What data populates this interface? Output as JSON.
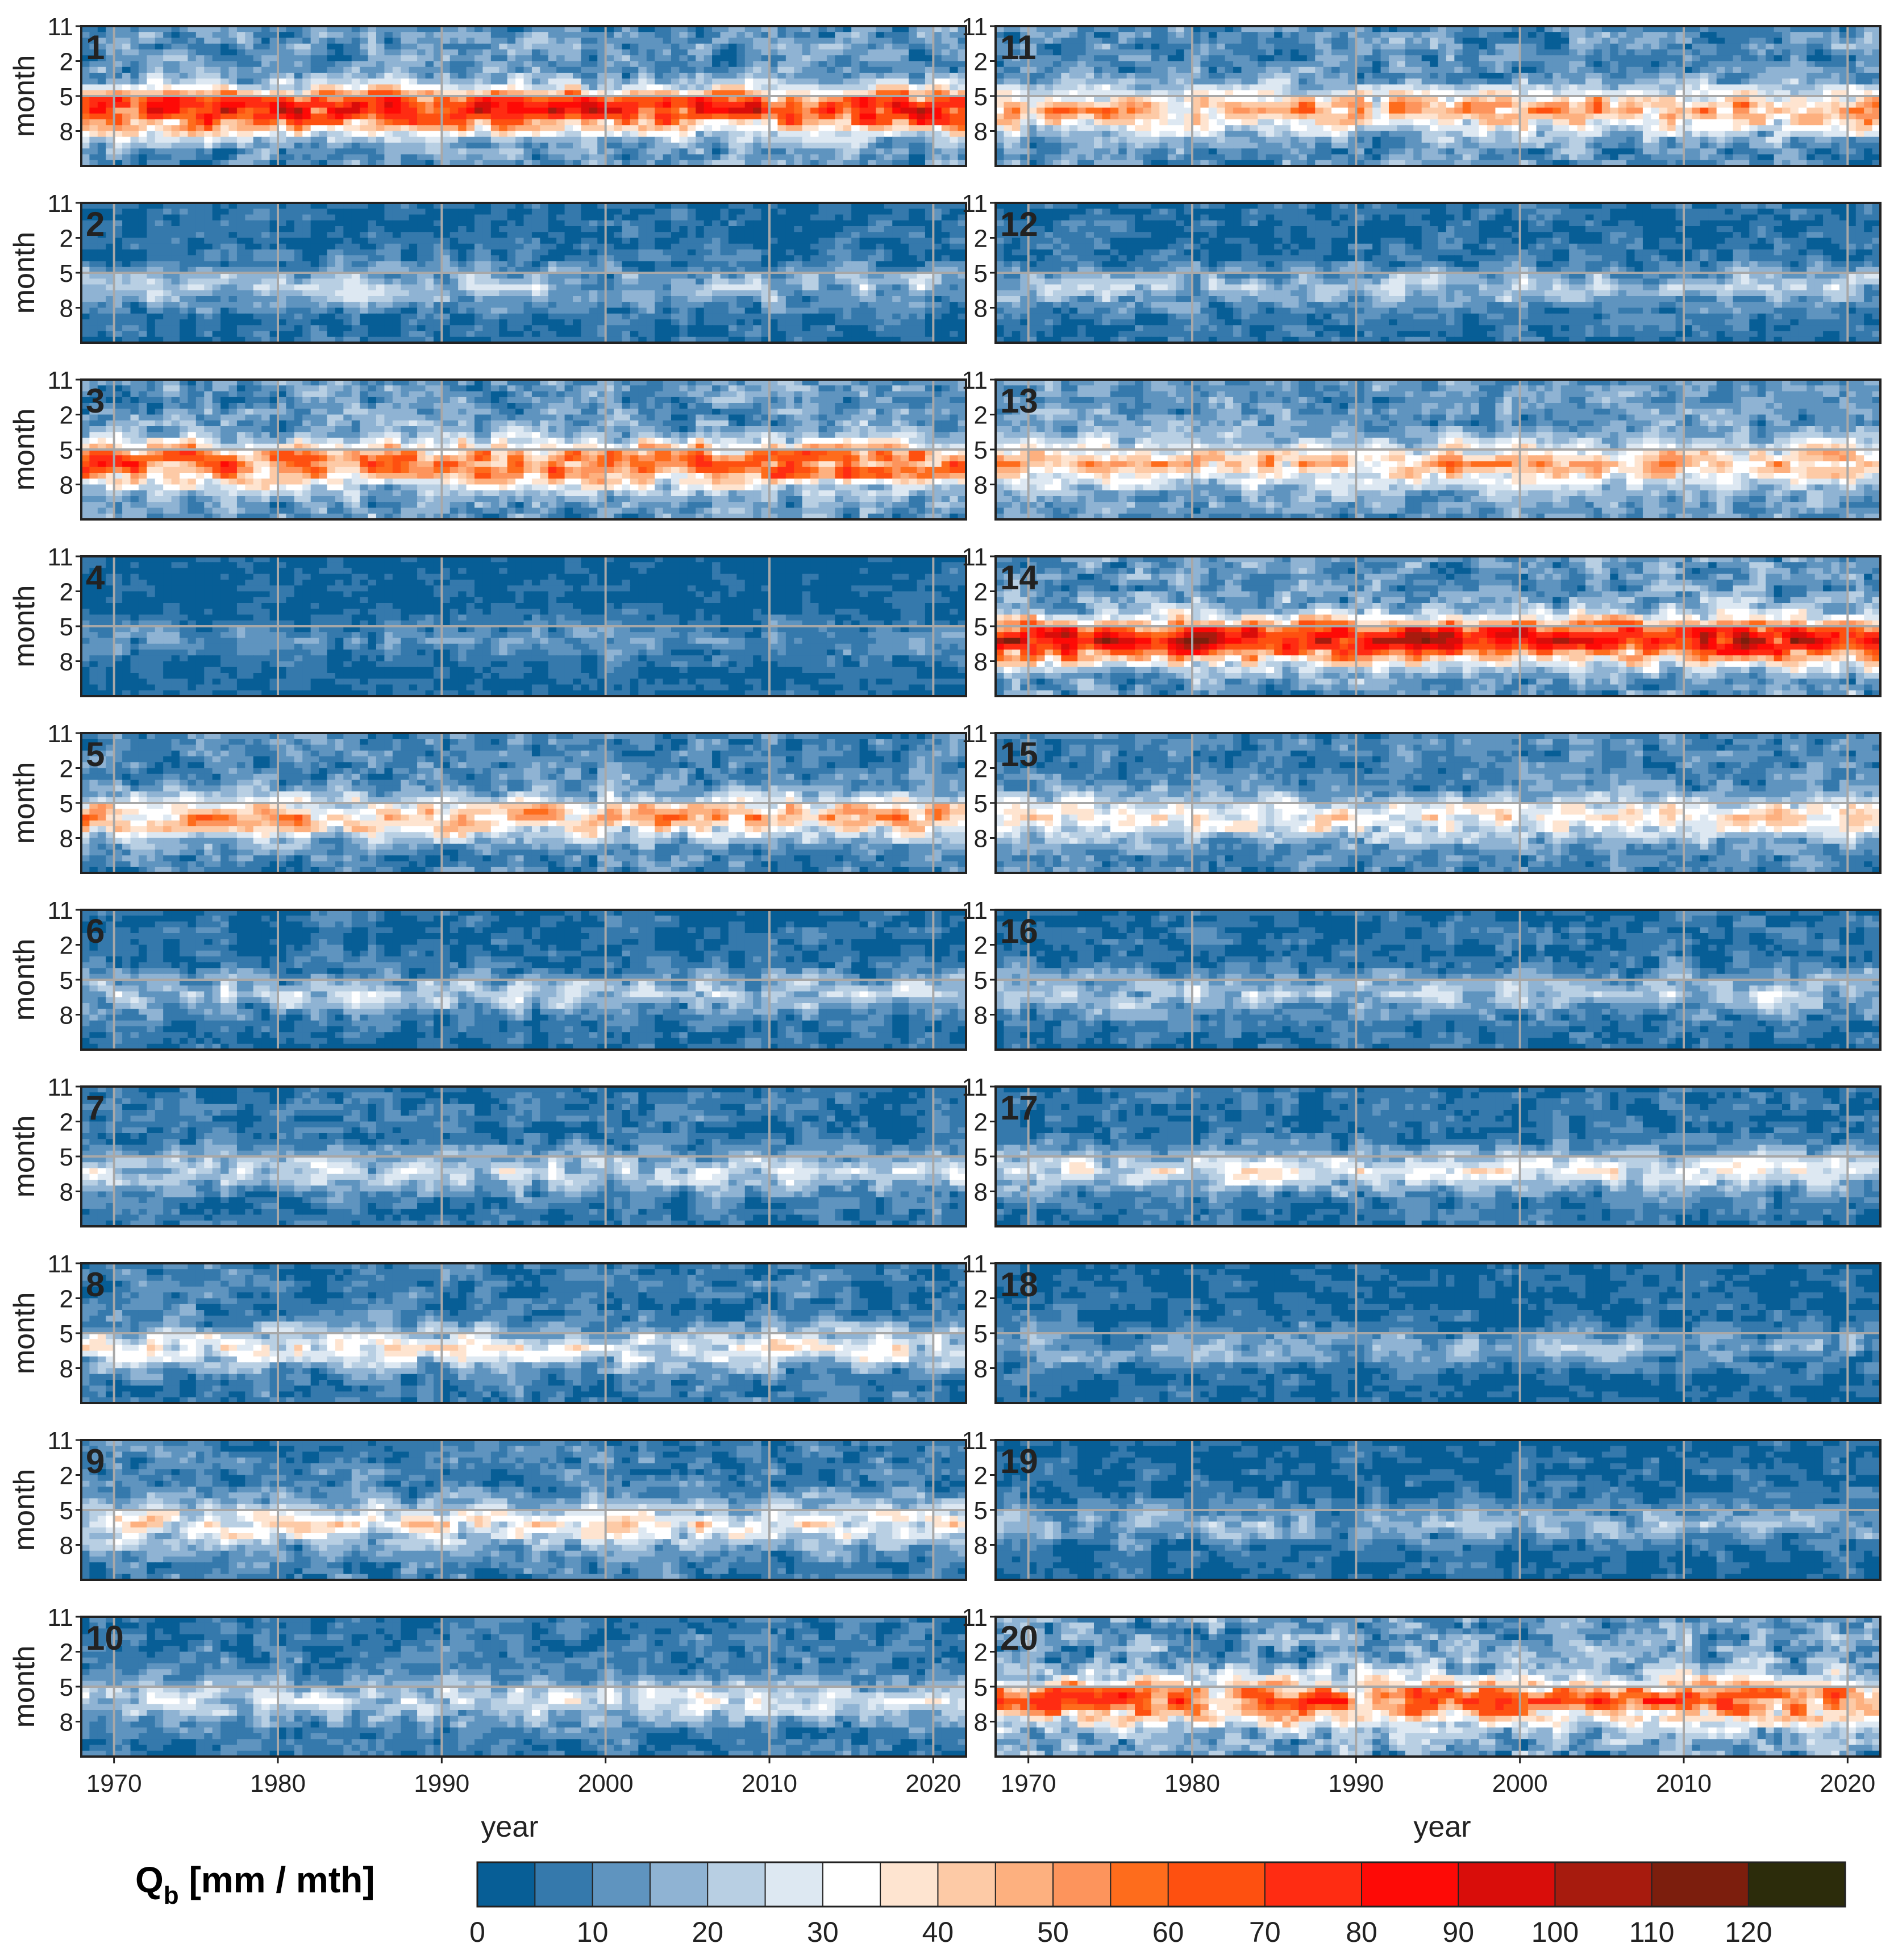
{
  "chart_data": {
    "type": "heatmap",
    "xlabel": "year",
    "ylabel": "month",
    "colorbar_label": "Q",
    "colorbar_label_sub": "b",
    "colorbar_label_unit": " [mm / mth]",
    "x_range": [
      1968,
      2022
    ],
    "x_ticks": [
      1970,
      1980,
      1990,
      2000,
      2010,
      2020
    ],
    "y_ticks": [
      11,
      2,
      5,
      8
    ],
    "y_ticks_months_from_nov": [
      0,
      3,
      6,
      9
    ],
    "grid": true,
    "colorbar": {
      "levels": [
        0,
        5,
        10,
        15,
        20,
        25,
        30,
        35,
        40,
        45,
        50,
        55,
        60,
        70,
        80,
        90,
        100,
        110,
        120,
        130
      ],
      "tick_values": [
        0,
        10,
        20,
        30,
        40,
        50,
        60,
        70,
        80,
        90,
        100,
        110,
        120
      ],
      "colors": [
        "#075e96",
        "#3579ac",
        "#5f94bf",
        "#8fb3d3",
        "#b8cfe3",
        "#dde8f2",
        "#ffffff",
        "#fee4d0",
        "#fdcaa6",
        "#fdb07f",
        "#fd945c",
        "#fe6c1c",
        "#fe5010",
        "#ff2c12",
        "#fe0a06",
        "#d90d0a",
        "#a71b0e",
        "#7c1e0d",
        "#2c2c0b"
      ]
    },
    "panels": [
      {
        "id": "1",
        "peak": 78,
        "base": 22,
        "noise": 12
      },
      {
        "id": "2",
        "peak": 20,
        "base": 10,
        "noise": 8
      },
      {
        "id": "3",
        "peak": 65,
        "base": 22,
        "noise": 12
      },
      {
        "id": "4",
        "peak": 12,
        "base": 7,
        "noise": 6
      },
      {
        "id": "5",
        "peak": 45,
        "base": 18,
        "noise": 10
      },
      {
        "id": "6",
        "peak": 22,
        "base": 10,
        "noise": 8
      },
      {
        "id": "7",
        "peak": 24,
        "base": 12,
        "noise": 8
      },
      {
        "id": "8",
        "peak": 30,
        "base": 14,
        "noise": 9
      },
      {
        "id": "9",
        "peak": 34,
        "base": 16,
        "noise": 9
      },
      {
        "id": "10",
        "peak": 26,
        "base": 14,
        "noise": 8
      },
      {
        "id": "11",
        "peak": 48,
        "base": 20,
        "noise": 11
      },
      {
        "id": "12",
        "peak": 20,
        "base": 10,
        "noise": 8
      },
      {
        "id": "13",
        "peak": 44,
        "base": 24,
        "noise": 10
      },
      {
        "id": "14",
        "peak": 88,
        "base": 24,
        "noise": 12
      },
      {
        "id": "15",
        "peak": 36,
        "base": 18,
        "noise": 9
      },
      {
        "id": "16",
        "peak": 22,
        "base": 11,
        "noise": 8
      },
      {
        "id": "17",
        "peak": 28,
        "base": 12,
        "noise": 8
      },
      {
        "id": "18",
        "peak": 16,
        "base": 8,
        "noise": 7
      },
      {
        "id": "19",
        "peak": 17,
        "base": 9,
        "noise": 7
      },
      {
        "id": "20",
        "peak": 62,
        "base": 26,
        "noise": 14
      }
    ]
  }
}
